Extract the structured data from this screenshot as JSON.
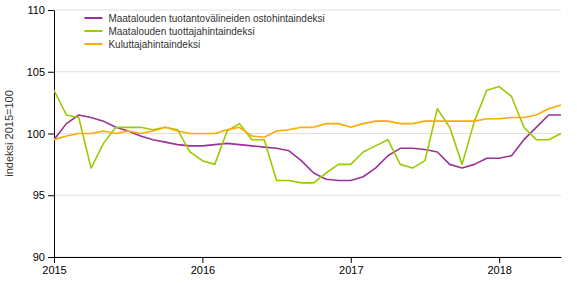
{
  "chart_data": {
    "type": "line",
    "y_label": "indeksi 2015=100",
    "categories": [
      "2015",
      null,
      null,
      null,
      null,
      null,
      null,
      null,
      null,
      null,
      null,
      null,
      "2016",
      null,
      null,
      null,
      null,
      null,
      null,
      null,
      null,
      null,
      null,
      null,
      "2017",
      null,
      null,
      null,
      null,
      null,
      null,
      null,
      null,
      null,
      null,
      null,
      "2018",
      null,
      null,
      null,
      null,
      null
    ],
    "series": [
      {
        "name": "Maatalouden tuotantovälineiden ostohintaindeksi",
        "color": "#993399",
        "values": [
          99.5,
          100.8,
          101.5,
          101.3,
          101.0,
          100.5,
          100.2,
          99.8,
          99.5,
          99.3,
          99.1,
          99.0,
          99.0,
          99.1,
          99.2,
          99.1,
          99.0,
          98.9,
          98.8,
          98.6,
          97.8,
          96.8,
          96.3,
          96.2,
          96.2,
          96.5,
          97.2,
          98.2,
          98.8,
          98.8,
          98.7,
          98.5,
          97.5,
          97.2,
          97.5,
          98.0,
          98.0,
          98.2,
          99.5,
          100.5,
          101.5,
          101.5
        ]
      },
      {
        "name": "Maatalouden tuottajahintaindeksi",
        "color": "#99cc00",
        "values": [
          103.5,
          101.5,
          101.3,
          97.2,
          99.2,
          100.5,
          100.5,
          100.5,
          100.3,
          100.5,
          100.3,
          98.5,
          97.8,
          97.5,
          100.2,
          100.8,
          99.5,
          99.5,
          96.2,
          96.2,
          96.0,
          96.0,
          96.8,
          97.5,
          97.5,
          98.5,
          99.0,
          99.5,
          97.5,
          97.2,
          97.8,
          102.0,
          100.5,
          97.5,
          101.0,
          103.5,
          103.8,
          103.0,
          100.5,
          99.5,
          99.5,
          100.0
        ]
      },
      {
        "name": "Kuluttajahintaindeksi",
        "color": "#ffaa00",
        "values": [
          99.5,
          99.8,
          100.0,
          100.0,
          100.2,
          100.0,
          100.2,
          100.0,
          100.2,
          100.5,
          100.2,
          100.0,
          100.0,
          100.0,
          100.3,
          100.5,
          99.8,
          99.7,
          100.2,
          100.3,
          100.5,
          100.5,
          100.8,
          100.8,
          100.5,
          100.8,
          101.0,
          101.0,
          100.8,
          100.8,
          101.0,
          101.0,
          101.0,
          101.0,
          101.0,
          101.2,
          101.2,
          101.3,
          101.3,
          101.5,
          102.0,
          102.3
        ]
      }
    ],
    "ylim": [
      90,
      110
    ],
    "yticks": [
      90,
      95,
      100,
      105,
      110
    ],
    "grid": true,
    "legend": "upper left"
  }
}
